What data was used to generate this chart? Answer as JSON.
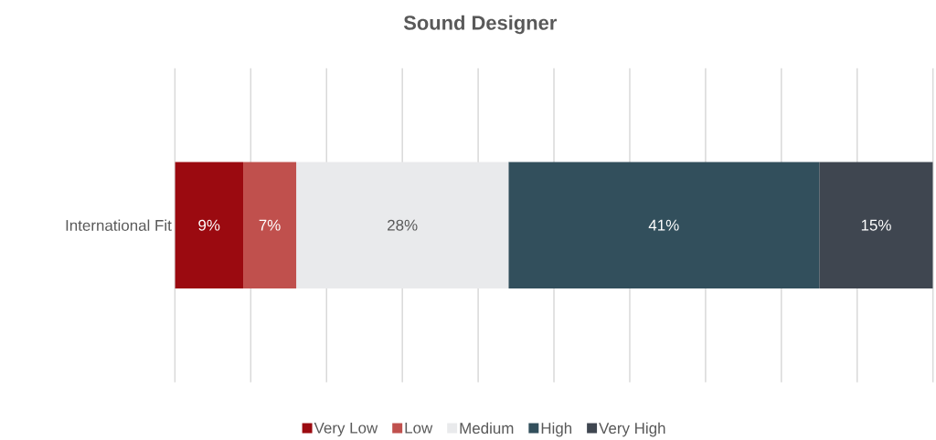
{
  "chart_data": {
    "type": "bar",
    "orientation": "horizontal",
    "stacked": true,
    "title": "Sound Designer",
    "categories": [
      "International Fit"
    ],
    "series": [
      {
        "name": "Very Low",
        "color": "#9b0a10",
        "values": [
          9
        ],
        "value_labels": [
          "9%"
        ]
      },
      {
        "name": "Low",
        "color": "#c0504d",
        "values": [
          7
        ],
        "value_labels": [
          "7%"
        ]
      },
      {
        "name": "Medium",
        "color": "#e9eaec",
        "values": [
          28
        ],
        "value_labels": [
          "28%"
        ]
      },
      {
        "name": "High",
        "color": "#324f5c",
        "values": [
          41
        ],
        "value_labels": [
          "41%"
        ]
      },
      {
        "name": "Very High",
        "color": "#3f4650",
        "values": [
          15
        ],
        "value_labels": [
          "15%"
        ]
      }
    ],
    "xlim": [
      0,
      100
    ],
    "xticks": [
      {
        "value": 0,
        "label": null
      },
      {
        "value": 10,
        "label": null
      },
      {
        "value": 20,
        "label": null
      },
      {
        "value": 30,
        "label": null
      },
      {
        "value": 40,
        "label": null
      },
      {
        "value": 50,
        "label": null
      },
      {
        "value": 60,
        "label": null
      },
      {
        "value": 70,
        "label": null
      },
      {
        "value": 80,
        "label": null
      },
      {
        "value": 90,
        "label": null
      },
      {
        "value": 100,
        "label": null
      }
    ],
    "grid": "x",
    "legend": "bottom",
    "tick_labels": "y"
  }
}
